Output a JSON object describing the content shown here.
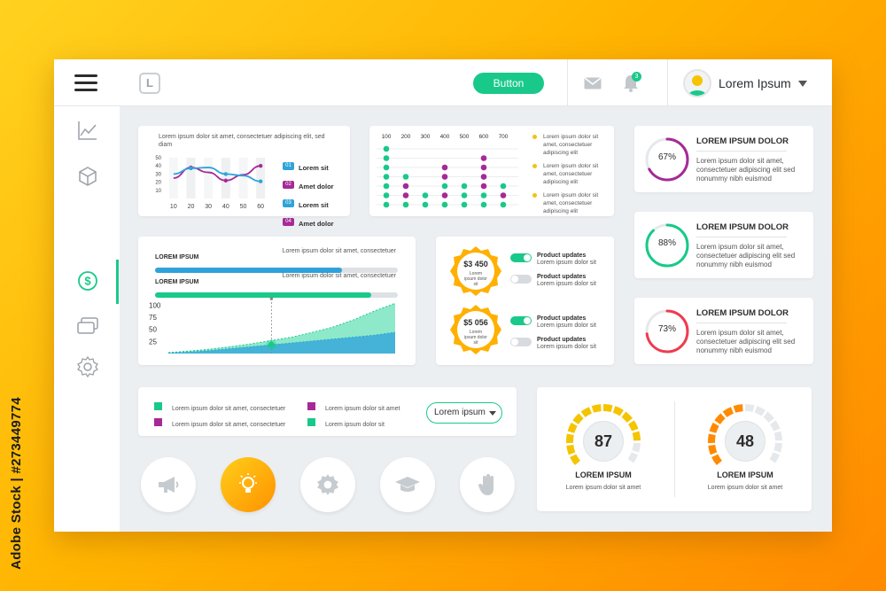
{
  "watermark_side": "Adobe Stock | #273449774",
  "header": {
    "logo_letter": "L",
    "button_label": "Button",
    "notification_count": "3",
    "user_name": "Lorem Ipsum"
  },
  "sidebar": {
    "icons": [
      "chart-icon",
      "cube-icon",
      "dollar-icon",
      "cards-icon",
      "settings-icon"
    ],
    "active_index": 2
  },
  "colors": {
    "accent": "#19c98a",
    "blue": "#2fa3d9",
    "purple": "#a52a96",
    "orange": "#ff9a00",
    "red": "#ef3b4f",
    "yellow": "#f1c40f"
  },
  "line_card": {
    "title": "Lorem ipsum dolor sit amet, consectetuer adipiscing elit, sed diam",
    "legend": [
      {
        "num": "01",
        "label": "Lorem sit",
        "color": "#2fa3d9"
      },
      {
        "num": "02",
        "label": "Amet dolor",
        "color": "#a52a96"
      },
      {
        "num": "03",
        "label": "Lorem sit",
        "color": "#2fa3d9"
      },
      {
        "num": "04",
        "label": "Amet dolor",
        "color": "#a52a96"
      }
    ]
  },
  "dot_card": {
    "notes": [
      {
        "text": "Lorem ipsum dolor sit amet, consectetuer adipiscing elit"
      },
      {
        "text": "Lorem ipsum dolor sit amet, consectetuer adipiscing elit"
      },
      {
        "text": "Lorem ipsum dolor sit amet, consectetuer adipiscing elit"
      }
    ]
  },
  "progress_card": {
    "bars": [
      {
        "label": "LOREM IPSUM",
        "text": "Lorem ipsum dolor sit amet, consectetuer",
        "value": 0.77,
        "color": "#2fa3d9"
      },
      {
        "label": "LOREM IPSUM",
        "text": "Lorem ipsum dolor sit amet, consectetuer",
        "value": 0.89,
        "color": "#19c98a"
      }
    ]
  },
  "price_card": {
    "badges": [
      {
        "price": "$3 450",
        "sub": "Lorem ipsum dolor sit"
      },
      {
        "price": "$5 056",
        "sub": "Lorem ipsum dolor sit"
      }
    ],
    "toggles": [
      {
        "title": "Product updates",
        "text": "Lorem ipsum dolor sit",
        "on": true
      },
      {
        "title": "Product updates",
        "text": "Lorem ipsum dolor sit",
        "on": false
      },
      {
        "title": "Product updates",
        "text": "Lorem ipsum dolor sit",
        "on": true
      },
      {
        "title": "Product updates",
        "text": "Lorem ipsum dolor sit",
        "on": false
      }
    ]
  },
  "stats": [
    {
      "percent": "67%",
      "value": 0.67,
      "title": "LOREM IPSUM DOLOR",
      "text": "Lorem ipsum dolor sit amet, consectetuer adipiscing elit sed nonummy nibh euismod",
      "color": "#a52a96"
    },
    {
      "percent": "88%",
      "value": 0.88,
      "title": "LOREM IPSUM DOLOR",
      "text": "Lorem ipsum dolor sit amet, consectetuer adipiscing elit sed nonummy nibh euismod",
      "color": "#19c98a"
    },
    {
      "percent": "73%",
      "value": 0.73,
      "title": "LOREM IPSUM DOLOR",
      "text": "Lorem ipsum dolor sit amet, consectetuer adipiscing elit sed nonummy nibh euismod",
      "color": "#ef3b4f"
    }
  ],
  "legend_card": {
    "items": [
      {
        "text": "Lorem ipsum dolor sit amet, consectetuer",
        "color": "#19c98a"
      },
      {
        "text": "Lorem ipsum dolor sit amet",
        "color": "#a52a96"
      },
      {
        "text": "Lorem ipsum dolor sit amet, consectetuer",
        "color": "#a52a96"
      },
      {
        "text": "Lorem ipsum dolor sit",
        "color": "#19c98a"
      }
    ],
    "select_value": "Lorem ipsum"
  },
  "action_buttons": [
    "megaphone-icon",
    "lightbulb-icon",
    "gear-icon",
    "graduation-cap-icon",
    "hand-icon"
  ],
  "gauges": [
    {
      "value": "87",
      "level": 0.87,
      "title": "LOREM IPSUM",
      "text": "Lorem ipsum dolor sit amet",
      "color": "#f5c400"
    },
    {
      "value": "48",
      "level": 0.48,
      "title": "LOREM IPSUM",
      "text": "Lorem ipsum dolor sit amet",
      "color": "#ff8a00"
    }
  ],
  "chart_data": [
    {
      "type": "line",
      "x": [
        10,
        20,
        30,
        40,
        50,
        60
      ],
      "ylim": [
        0,
        50
      ],
      "yticks": [
        10,
        20,
        30,
        40,
        50
      ],
      "xticks": [
        10,
        20,
        30,
        40,
        50,
        60
      ],
      "series": [
        {
          "values": [
            25,
            38,
            32,
            22,
            29,
            40
          ],
          "color": "#a52a96"
        },
        {
          "values": [
            30,
            37,
            38,
            30,
            28,
            21
          ],
          "color": "#2fa3d9"
        }
      ]
    },
    {
      "type": "scatter",
      "xticks": [
        100,
        200,
        300,
        400,
        500,
        600,
        700
      ],
      "columns": [
        {
          "x": 100,
          "dots": [
            "g",
            "g",
            "g",
            "g",
            "g",
            "g",
            "g"
          ]
        },
        {
          "x": 200,
          "dots": [
            "",
            "",
            "",
            "g",
            "p",
            "p",
            "g"
          ]
        },
        {
          "x": 300,
          "dots": [
            "",
            "",
            "",
            "",
            "",
            "g",
            "g"
          ]
        },
        {
          "x": 400,
          "dots": [
            "",
            "",
            "p",
            "p",
            "g",
            "p",
            "g"
          ]
        },
        {
          "x": 500,
          "dots": [
            "",
            "",
            "",
            "",
            "g",
            "g",
            "g"
          ]
        },
        {
          "x": 600,
          "dots": [
            "",
            "p",
            "p",
            "p",
            "p",
            "g",
            "g"
          ]
        },
        {
          "x": 700,
          "dots": [
            "",
            "",
            "",
            "",
            "g",
            "p",
            "g"
          ]
        }
      ]
    },
    {
      "type": "area",
      "yticks": [
        25,
        50,
        75,
        100
      ],
      "ylim": [
        0,
        110
      ],
      "series": [
        {
          "values": [
            2,
            5,
            9,
            14,
            20,
            27,
            34,
            44,
            55,
            70,
            88,
            104
          ],
          "color": "#5de0b2"
        },
        {
          "values": [
            1,
            3,
            6,
            10,
            14,
            18,
            22,
            26,
            30,
            34,
            38,
            44
          ],
          "color": "#37a9d9"
        }
      ],
      "marker": {
        "index": 5,
        "value": 18
      }
    }
  ]
}
